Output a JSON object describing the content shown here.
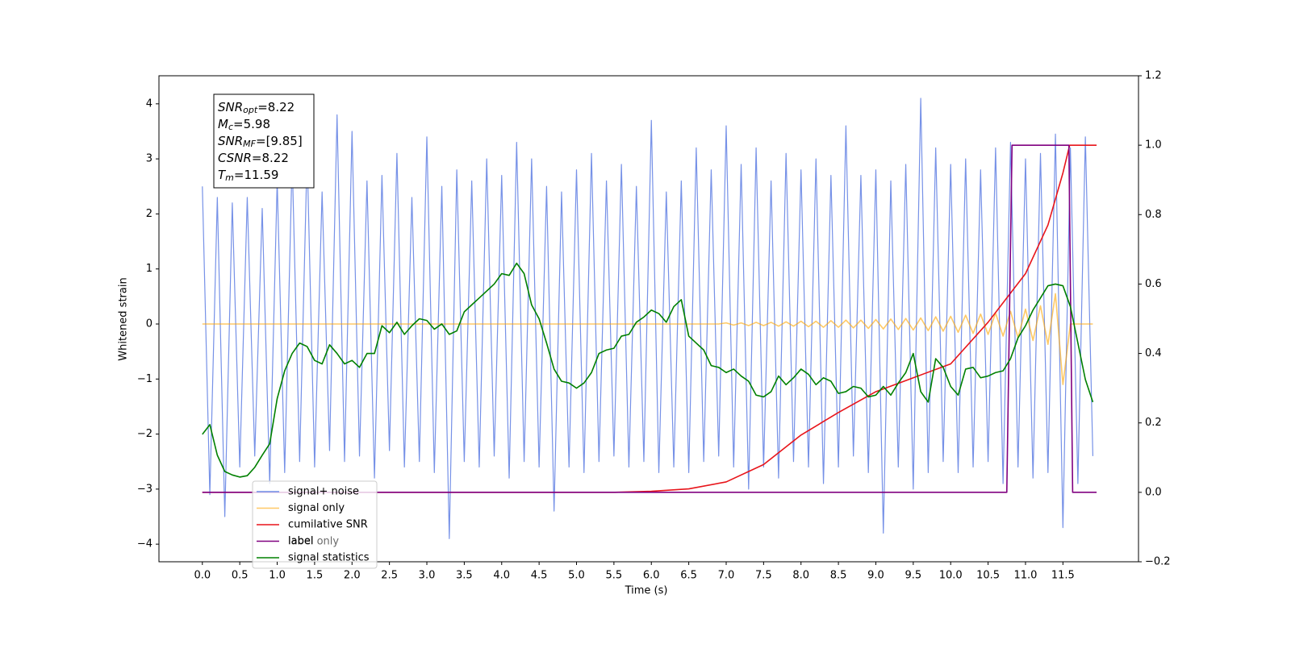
{
  "chart_data": {
    "type": "line",
    "x_label": "Time (s)",
    "y_label": "Whitened strain",
    "xlim": [
      -0.58,
      12.51
    ],
    "ylim": [
      -4.32,
      4.51
    ],
    "y2lim": [
      -0.2,
      1.2
    ],
    "xticks": [
      {
        "value": 0,
        "label": "0.0"
      },
      0.5,
      {
        "value": 1,
        "label": "1.0"
      },
      1.5,
      {
        "value": 2,
        "label": "2.0"
      },
      2.5,
      {
        "value": 3,
        "label": "3.0"
      },
      3.5,
      {
        "value": 4,
        "label": "4.0"
      },
      4.5,
      {
        "value": 5,
        "label": "5.0"
      },
      5.5,
      {
        "value": 6,
        "label": "6.0"
      },
      6.5,
      {
        "value": 7,
        "label": "7.0"
      },
      7.5,
      {
        "value": 8,
        "label": "8.0"
      },
      8.5,
      {
        "value": 9,
        "label": "9.0"
      },
      9.5,
      {
        "value": 10,
        "label": "10.0"
      },
      10.5,
      {
        "value": 11,
        "label": "11.0"
      },
      11.5
    ],
    "yticks": [
      {
        "value": -4,
        "label": "−4"
      },
      {
        "value": -3,
        "label": "−3"
      },
      {
        "value": -2,
        "label": "−2"
      },
      {
        "value": -1,
        "label": "−1"
      },
      0,
      1,
      2,
      3,
      4
    ],
    "y2ticks": [
      {
        "value": -0.2,
        "label": "−0.2"
      },
      {
        "value": 0,
        "label": "0.0"
      },
      0.2,
      0.4,
      0.6,
      0.8,
      {
        "value": 1,
        "label": "1.0"
      },
      1.2
    ],
    "annotation_lines": [
      {
        "main": "SNR",
        "sub": "opt",
        "rest": "=8.22"
      },
      {
        "main": "M",
        "sub": "c",
        "rest": "=5.98"
      },
      {
        "main": "SNR",
        "sub": "MF",
        "rest": "=[9.85]"
      },
      {
        "main": "CSNR",
        "sub": null,
        "rest": "=8.22"
      },
      {
        "main": "T",
        "sub": "m",
        "rest": "=11.59"
      }
    ],
    "legend_ghost_text": "label only",
    "x": [
      0.0,
      0.1,
      0.2,
      0.3,
      0.4,
      0.5,
      0.6,
      0.7,
      0.8,
      0.9,
      1.0,
      1.1,
      1.2,
      1.3,
      1.4,
      1.5,
      1.6,
      1.7,
      1.8,
      1.9,
      2.0,
      2.1,
      2.2,
      2.3,
      2.4,
      2.5,
      2.6,
      2.7,
      2.8,
      2.9,
      3.0,
      3.1,
      3.2,
      3.3,
      3.4,
      3.5,
      3.6,
      3.7,
      3.8,
      3.9,
      4.0,
      4.1,
      4.2,
      4.3,
      4.4,
      4.5,
      4.6,
      4.7,
      4.8,
      4.9,
      5.0,
      5.1,
      5.2,
      5.3,
      5.4,
      5.5,
      5.6,
      5.7,
      5.8,
      5.9,
      6.0,
      6.1,
      6.2,
      6.3,
      6.4,
      6.5,
      6.6,
      6.7,
      6.8,
      6.9,
      7.0,
      7.1,
      7.2,
      7.3,
      7.4,
      7.5,
      7.6,
      7.7,
      7.8,
      7.9,
      8.0,
      8.1,
      8.2,
      8.3,
      8.4,
      8.5,
      8.6,
      8.7,
      8.8,
      8.9,
      9.0,
      9.1,
      9.2,
      9.3,
      9.4,
      9.5,
      9.6,
      9.7,
      9.8,
      9.9,
      10.0,
      10.1,
      10.2,
      10.3,
      10.4,
      10.5,
      10.6,
      10.7,
      10.8,
      10.9,
      11.0,
      11.1,
      11.2,
      11.3,
      11.4,
      11.5,
      11.6,
      11.7,
      11.8,
      11.9
    ],
    "series": [
      {
        "name": "signal+ noise",
        "color": "#6f8be6",
        "axis": "y",
        "values": [
          2.5,
          -3.1,
          2.3,
          -3.5,
          2.2,
          -2.6,
          2.3,
          -2.4,
          2.1,
          -2.9,
          2.6,
          -2.7,
          3.0,
          -2.5,
          3.1,
          -2.6,
          2.4,
          -2.3,
          3.8,
          -2.5,
          3.5,
          -2.4,
          2.6,
          -2.8,
          2.7,
          -2.3,
          3.1,
          -2.6,
          2.3,
          -2.5,
          3.4,
          -2.7,
          2.5,
          -3.9,
          2.8,
          -2.5,
          2.6,
          -2.6,
          3.0,
          -2.4,
          2.7,
          -2.8,
          3.3,
          -2.5,
          3.0,
          -2.6,
          2.5,
          -3.4,
          2.4,
          -2.6,
          2.8,
          -2.7,
          3.1,
          -2.5,
          2.6,
          -2.4,
          2.9,
          -2.6,
          2.5,
          -2.5,
          3.7,
          -2.7,
          2.4,
          -2.6,
          2.6,
          -2.7,
          3.2,
          -2.5,
          2.8,
          -2.4,
          3.6,
          -2.6,
          2.9,
          -3.0,
          3.2,
          -2.6,
          2.6,
          -2.8,
          3.1,
          -2.5,
          2.8,
          -2.6,
          3.0,
          -2.9,
          2.7,
          -2.6,
          3.6,
          -2.4,
          2.7,
          -2.7,
          2.8,
          -3.8,
          2.6,
          -2.6,
          2.9,
          -3.0,
          4.1,
          -2.7,
          3.2,
          -2.5,
          2.9,
          -2.7,
          3.0,
          -2.6,
          2.8,
          -2.5,
          3.2,
          -2.9,
          3.3,
          -2.6,
          3.0,
          -2.8,
          3.1,
          -2.7,
          3.45,
          -3.7,
          3.2,
          -2.9,
          3.4,
          -2.4
        ]
      },
      {
        "name": "signal only",
        "color": "#ffa500",
        "axis": "y",
        "values": [
          0,
          0,
          0,
          0,
          0,
          0,
          0,
          0,
          0,
          0,
          0,
          0,
          0,
          0,
          0,
          0,
          0,
          0,
          0,
          0,
          0,
          0,
          0,
          0,
          0,
          0,
          0,
          0,
          0,
          0,
          0,
          0,
          0,
          0,
          0,
          0,
          0,
          0,
          0,
          0,
          0,
          0,
          0,
          0,
          0,
          0,
          0,
          0,
          0,
          0,
          0,
          0,
          0,
          0,
          0,
          0,
          0,
          0,
          0,
          0,
          0,
          0,
          0,
          0,
          0,
          0,
          0,
          0,
          0,
          0,
          0.02,
          -0.02,
          0.02,
          -0.03,
          0.03,
          -0.03,
          0.03,
          -0.04,
          0.04,
          -0.04,
          0.05,
          -0.05,
          0.05,
          -0.06,
          0.06,
          -0.06,
          0.07,
          -0.07,
          0.07,
          -0.08,
          0.08,
          -0.09,
          0.09,
          -0.1,
          0.1,
          -0.11,
          0.11,
          -0.12,
          0.13,
          -0.13,
          0.14,
          -0.15,
          0.16,
          -0.17,
          0.18,
          -0.19,
          0.2,
          -0.22,
          0.23,
          -0.25,
          0.27,
          -0.3,
          0.33,
          -0.37,
          0.55,
          -1.1,
          0,
          0,
          0,
          0
        ]
      },
      {
        "name": "cumilative SNR",
        "color": "#e8141a",
        "axis": "y2",
        "x": [
          0.0,
          5.5,
          6.0,
          6.5,
          7.0,
          7.5,
          8.0,
          8.5,
          9.0,
          9.5,
          10.0,
          10.5,
          11.0,
          11.3,
          11.5,
          11.59,
          11.95
        ],
        "values": [
          0,
          0,
          0.003,
          0.01,
          0.03,
          0.08,
          0.165,
          0.23,
          0.29,
          0.33,
          0.37,
          0.49,
          0.63,
          0.77,
          0.92,
          1.0,
          1.0
        ]
      },
      {
        "name": "label",
        "color": "#800080",
        "axis": "y2",
        "x": [
          0.0,
          10.75,
          10.82,
          11.58,
          11.63,
          11.95
        ],
        "values": [
          0,
          0,
          1,
          1,
          0,
          0
        ]
      },
      {
        "name": "signal statistics",
        "color": "#008000",
        "axis": "y2",
        "values": [
          0.167,
          0.195,
          0.107,
          0.06,
          0.05,
          0.044,
          0.048,
          0.072,
          0.107,
          0.14,
          0.27,
          0.35,
          0.4,
          0.43,
          0.42,
          0.38,
          0.37,
          0.425,
          0.4,
          0.37,
          0.38,
          0.36,
          0.4,
          0.4,
          0.48,
          0.46,
          0.49,
          0.455,
          0.48,
          0.5,
          0.495,
          0.47,
          0.485,
          0.455,
          0.465,
          0.52,
          0.54,
          0.56,
          0.58,
          0.6,
          0.63,
          0.625,
          0.66,
          0.63,
          0.54,
          0.5,
          0.43,
          0.355,
          0.32,
          0.315,
          0.3,
          0.315,
          0.345,
          0.4,
          0.41,
          0.415,
          0.45,
          0.455,
          0.49,
          0.505,
          0.525,
          0.515,
          0.49,
          0.535,
          0.555,
          0.45,
          0.43,
          0.41,
          0.365,
          0.36,
          0.345,
          0.355,
          0.335,
          0.32,
          0.28,
          0.275,
          0.29,
          0.335,
          0.31,
          0.33,
          0.355,
          0.34,
          0.31,
          0.33,
          0.32,
          0.285,
          0.29,
          0.305,
          0.3,
          0.275,
          0.28,
          0.305,
          0.28,
          0.315,
          0.345,
          0.4,
          0.29,
          0.26,
          0.385,
          0.36,
          0.305,
          0.28,
          0.355,
          0.36,
          0.33,
          0.335,
          0.345,
          0.35,
          0.385,
          0.445,
          0.48,
          0.525,
          0.56,
          0.595,
          0.6,
          0.595,
          0.535,
          0.43,
          0.325,
          0.26
        ]
      }
    ]
  }
}
